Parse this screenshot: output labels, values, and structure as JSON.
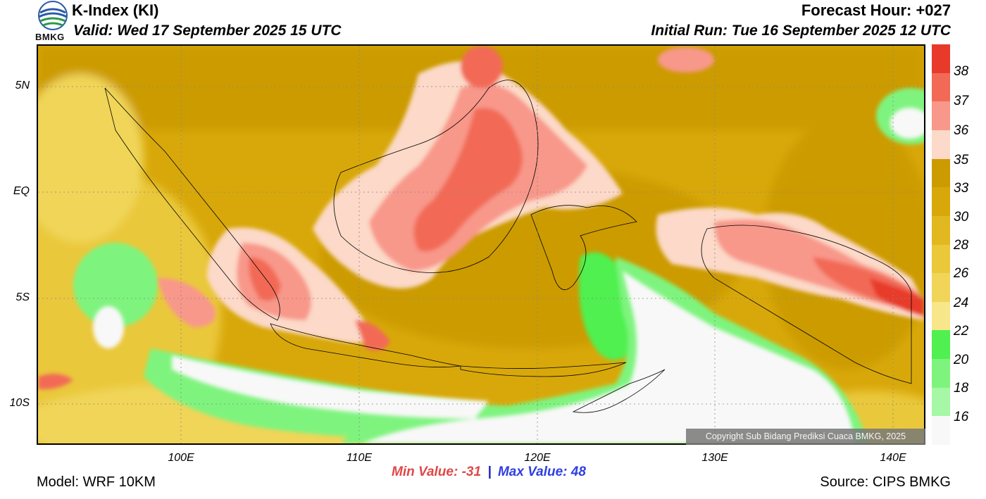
{
  "header": {
    "title": "K-Index (KI)",
    "valid": "Valid: Wed 17 September 2025 15 UTC",
    "forecast_hour": "Forecast Hour: +027",
    "initial_run": "Initial Run: Tue 16 September 2025 12 UTC",
    "logo_text": "BMKG"
  },
  "map": {
    "lat_labels": [
      "5N",
      "EQ",
      "5S",
      "10S"
    ],
    "lon_labels": [
      "100E",
      "110E",
      "120E",
      "130E",
      "140E"
    ],
    "copyright": "Copyright Sub Bidang Prediksi Cuaca BMKG, 2025"
  },
  "colorbar": {
    "labels": [
      "38",
      "37",
      "36",
      "35",
      "33",
      "30",
      "28",
      "26",
      "24",
      "22",
      "20",
      "18",
      "16"
    ],
    "colors": [
      "#e83a2a",
      "#f26a56",
      "#f8988a",
      "#fcd9c8",
      "#cc9b00",
      "#d8a80a",
      "#e2b820",
      "#eac83a",
      "#f0d558",
      "#f7e68a",
      "#4ff04f",
      "#7ef47e",
      "#a6f7a6",
      "#f8f8f8"
    ]
  },
  "footer": {
    "min_value": "Min Value: -31",
    "separator": "|",
    "max_value": "Max Value:  48",
    "model": "Model: WRF 10KM",
    "source": "Source: CIPS BMKG"
  }
}
